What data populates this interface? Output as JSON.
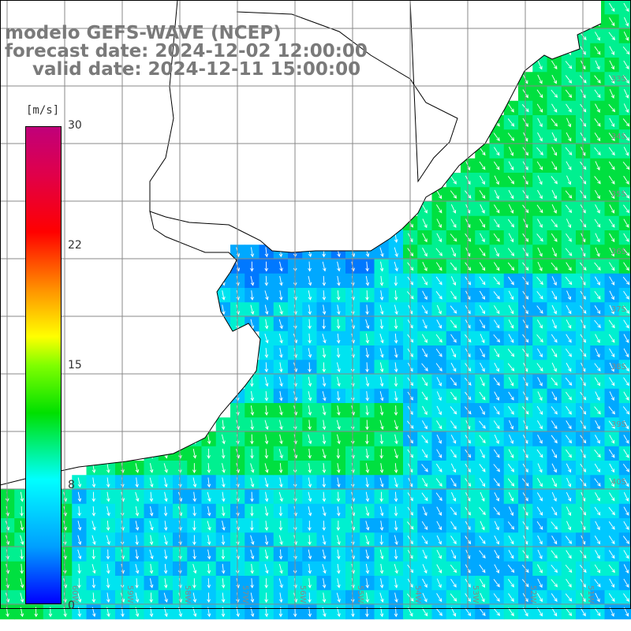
{
  "title": {
    "line1": "modelo GEFS-WAVE (NCEP)",
    "line2": "forecast date: 2024-12-02 12:00:00",
    "line3": "valid date: 2024-12-11 15:00:00"
  },
  "colorbar": {
    "unit": "[m/s]",
    "ticks": [
      "30",
      "22",
      "15",
      "8",
      "0"
    ],
    "tick_values": [
      30,
      22,
      15,
      8,
      0
    ],
    "colors": [
      "#0000ff",
      "#00a0ff",
      "#00ffff",
      "#00e000",
      "#80ff00",
      "#ffff00",
      "#ff9000",
      "#ff0000",
      "#c0007a"
    ]
  },
  "latitude_labels": [
    "33S",
    "34S",
    "35S",
    "36S",
    "37S",
    "38S",
    "39S",
    "40S"
  ],
  "longitude_labels": [
    "60W",
    "59W",
    "58W",
    "57W",
    "56W",
    "55W",
    "54W",
    "53W",
    "52W",
    "51W"
  ],
  "map": {
    "land_color": "#ffffff",
    "coast_color": "#000000",
    "grid_color": "#888888",
    "vector_color": "#ffffff"
  }
}
